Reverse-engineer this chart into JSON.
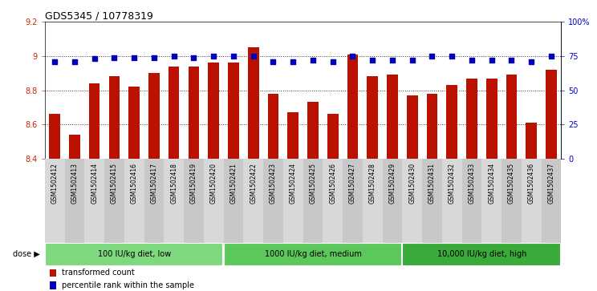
{
  "title": "GDS5345 / 10778319",
  "samples": [
    "GSM1502412",
    "GSM1502413",
    "GSM1502414",
    "GSM1502415",
    "GSM1502416",
    "GSM1502417",
    "GSM1502418",
    "GSM1502419",
    "GSM1502420",
    "GSM1502421",
    "GSM1502422",
    "GSM1502423",
    "GSM1502424",
    "GSM1502425",
    "GSM1502426",
    "GSM1502427",
    "GSM1502428",
    "GSM1502429",
    "GSM1502430",
    "GSM1502431",
    "GSM1502432",
    "GSM1502433",
    "GSM1502434",
    "GSM1502435",
    "GSM1502436",
    "GSM1502437"
  ],
  "bar_values": [
    8.66,
    8.54,
    8.84,
    8.88,
    8.82,
    8.9,
    8.94,
    8.94,
    8.96,
    8.96,
    9.05,
    8.78,
    8.67,
    8.73,
    8.66,
    9.01,
    8.88,
    8.89,
    8.77,
    8.78,
    8.83,
    8.87,
    8.87,
    8.89,
    8.61,
    8.92
  ],
  "percentile_values": [
    71,
    71,
    73,
    74,
    74,
    74,
    75,
    74,
    75,
    75,
    75,
    71,
    71,
    72,
    71,
    75,
    72,
    72,
    72,
    75,
    75,
    72,
    72,
    72,
    71,
    75
  ],
  "groups": [
    {
      "label": "100 IU/kg diet, low",
      "start": 0,
      "end": 9,
      "color": "#7ED87E"
    },
    {
      "label": "1000 IU/kg diet, medium",
      "start": 9,
      "end": 18,
      "color": "#5CC85C"
    },
    {
      "label": "10,000 IU/kg diet, high",
      "start": 18,
      "end": 26,
      "color": "#3AAA3A"
    }
  ],
  "ylim_left": [
    8.4,
    9.2
  ],
  "ylim_right": [
    0,
    100
  ],
  "bar_color": "#BB1100",
  "dot_color": "#0000BB",
  "bar_bottom": 8.4,
  "gridline_color": "#333333",
  "y_left_color": "#CC2200",
  "y_right_color": "#0000CC",
  "tick_bg_light": "#D8D8D8",
  "tick_bg_dark": "#C8C8C8",
  "legend_items": [
    "transformed count",
    "percentile rank within the sample"
  ]
}
